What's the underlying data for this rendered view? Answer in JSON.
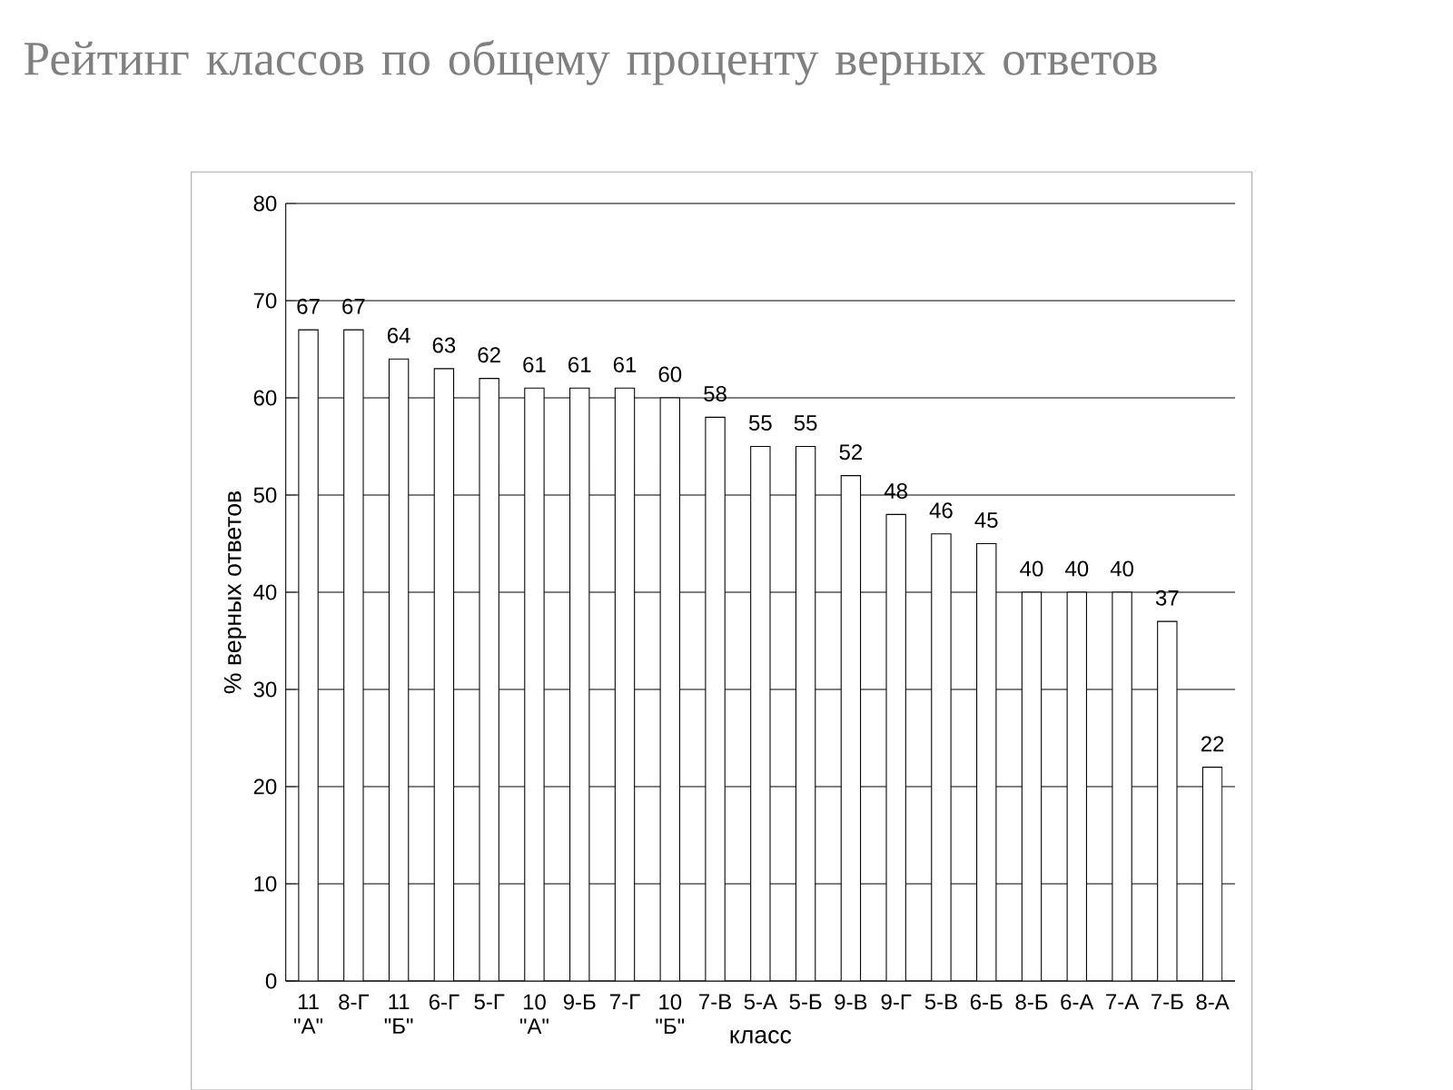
{
  "chart_data": {
    "type": "bar",
    "title": "Рейтинг классов по общему проценту верных ответов",
    "xlabel": "класс",
    "ylabel": "% верных ответов",
    "categories": [
      "11 \"А\"",
      "8-Г",
      "11 \"Б\"",
      "6-Г",
      "5-Г",
      "10 \"А\"",
      "9-Б",
      "7-Г",
      "10 \"Б\"",
      "7-В",
      "5-А",
      "5-Б",
      "9-В",
      "9-Г",
      "5-В",
      "6-Б",
      "8-Б",
      "6-А",
      "7-А",
      "7-Б",
      "8-А"
    ],
    "values": [
      67,
      67,
      64,
      63,
      62,
      61,
      61,
      61,
      60,
      58,
      55,
      55,
      52,
      48,
      46,
      45,
      40,
      40,
      40,
      37,
      22
    ],
    "color": "#ffffff",
    "ylim": [
      0,
      80
    ],
    "yticks": [
      0,
      10,
      20,
      30,
      40,
      50,
      60,
      70,
      80
    ],
    "grid": "y",
    "data_labels": true
  }
}
